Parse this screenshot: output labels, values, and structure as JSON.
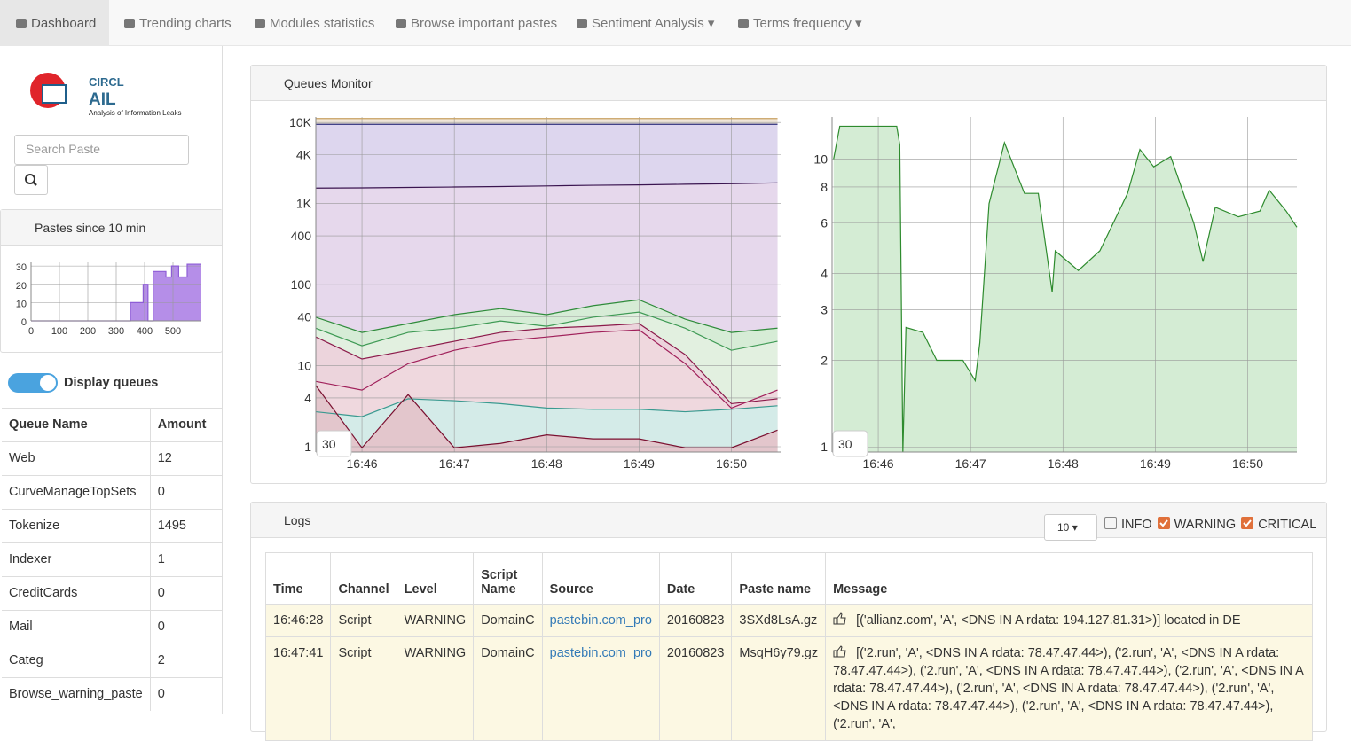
{
  "nav": {
    "items": [
      "Dashboard",
      "Trending charts",
      "Modules statistics",
      "Browse important pastes",
      "Sentiment Analysis",
      "Terms frequency"
    ]
  },
  "logo": {
    "org": "CIRCL",
    "name": "AIL",
    "tagline": "Analysis of Information Leaks"
  },
  "search": {
    "placeholder": "Search Paste"
  },
  "pastes_panel": {
    "title": "Pastes since 10 min",
    "chart": {
      "type": "area",
      "step": true,
      "color": "#8e5dd6",
      "fill": "#b58ee8",
      "x": [
        0,
        350,
        395,
        412,
        430,
        475,
        495,
        520,
        550,
        600
      ],
      "values": [
        0,
        10,
        20,
        0,
        27,
        24,
        30,
        24,
        31,
        31
      ],
      "xlim": [
        0,
        600
      ],
      "xticks": [
        0,
        100,
        200,
        300,
        400,
        500
      ],
      "ylim": [
        0,
        32
      ],
      "yticks": [
        0,
        10,
        20,
        30
      ]
    }
  },
  "display_queues": "Display queues",
  "queues_table": {
    "headers": [
      "Queue Name",
      "Amount"
    ],
    "rows": [
      [
        "Web",
        12
      ],
      [
        "CurveManageTopSets",
        0
      ],
      [
        "Tokenize",
        1495
      ],
      [
        "Indexer",
        1
      ],
      [
        "CreditCards",
        0
      ],
      [
        "Mail",
        0
      ],
      [
        "Categ",
        2
      ],
      [
        "Browse_warning_paste",
        0
      ]
    ]
  },
  "queues_monitor": {
    "title": "Queues Monitor",
    "charts": [
      {
        "type": "area",
        "log": true,
        "window": 30,
        "xlim": [
          "16:45:30",
          "16:50:32"
        ],
        "xticks": [
          "16:46",
          "16:47",
          "16:48",
          "16:49",
          "16:50"
        ],
        "ylim": [
          0.86,
          11700
        ],
        "yticks": [
          1,
          4,
          10,
          40,
          100,
          400,
          {
            "value": 1000,
            "label": "1K"
          },
          {
            "value": 4000,
            "label": "4K"
          },
          {
            "value": 10000,
            "label": "10K"
          }
        ],
        "x": [
          "16:45:30",
          "16:46:00",
          "16:46:30",
          "16:47:00",
          "16:47:30",
          "16:48:00",
          "16:48:30",
          "16:49:00",
          "16:49:30",
          "16:50:00",
          "16:50:30"
        ],
        "series": [
          {
            "color": "#c8a060",
            "fill": "#f0e6d8",
            "values": [
              11200,
              11200,
              11200,
              11200,
              11200,
              11200,
              11200,
              11200,
              11200,
              11200,
              11200
            ]
          },
          {
            "color": "#2c2c7a",
            "fill": "#ddd6ee",
            "values": [
              9500,
              9500,
              9500,
              9500,
              9500,
              9500,
              9500,
              9500,
              9500,
              9500,
              9500
            ]
          },
          {
            "color": "#3a1550",
            "fill": "#e6d8ec",
            "values": [
              1550,
              1560,
              1580,
              1600,
              1620,
              1650,
              1680,
              1700,
              1730,
              1760,
              1800
            ]
          },
          {
            "color": "#2e8b3a",
            "fill": "#d6ecd6",
            "values": [
              39.6,
              25.7,
              33,
              42.6,
              50.6,
              42.6,
              55,
              65,
              37.5,
              25.7,
              29
            ]
          },
          {
            "color": "#3f9a55",
            "fill": "#e2f0e0",
            "values": [
              29,
              17.6,
              25.7,
              29,
              35.6,
              30.6,
              39.6,
              45.8,
              29,
              15.5,
              20
            ]
          },
          {
            "color": "#8b1a4a",
            "fill": "#ecd4dc",
            "values": [
              22.6,
              12.1,
              15.5,
              20,
              25.7,
              29,
              30.6,
              33,
              13.7,
              3.4,
              3.9
            ]
          },
          {
            "color": "#a0205a",
            "fill": "#efd8de",
            "values": [
              6.4,
              5,
              10.6,
              15.5,
              20,
              22.6,
              25.7,
              27.7,
              10.6,
              3,
              5
            ]
          },
          {
            "color": "#3a9a90",
            "fill": "#d4ebe8",
            "values": [
              2.7,
              2.35,
              3.9,
              3.7,
              3.4,
              3,
              2.9,
              2.9,
              2.7,
              2.9,
              3.2
            ]
          },
          {
            "color": "#7a1030",
            "fill": "#e3c6cc",
            "values": [
              5.7,
              0.97,
              4.4,
              0.97,
              1.1,
              1.4,
              1.25,
              1.25,
              0.97,
              0.97,
              1.6
            ]
          }
        ]
      },
      {
        "type": "area",
        "log": true,
        "window": 30,
        "xlim": [
          "16:45:30",
          "16:50:32"
        ],
        "xticks": [
          "16:46",
          "16:47",
          "16:48",
          "16:49",
          "16:50"
        ],
        "ylim": [
          0.96,
          14
        ],
        "yticks": [
          1,
          2,
          3,
          4,
          6,
          8,
          10
        ],
        "x": [
          "16:45:31",
          "16:45:35",
          "16:46:12",
          "16:46:14",
          "16:46:16",
          "16:46:18",
          "16:46:29",
          "16:46:38",
          "16:46:55",
          "16:47:03",
          "16:47:06",
          "16:47:12",
          "16:47:22",
          "16:47:35",
          "16:47:44",
          "16:47:53",
          "16:47:55",
          "16:48:10",
          "16:48:24",
          "16:48:42",
          "16:48:50",
          "16:48:59",
          "16:49:10",
          "16:49:25",
          "16:49:31",
          "16:49:39",
          "16:49:54",
          "16:50:08",
          "16:50:14",
          "16:50:25",
          "16:50:32"
        ],
        "series": [
          {
            "color": "#2e8b2e",
            "fill": "#d4ecd4",
            "values": [
              10,
              13,
              13,
              11.2,
              0.96,
              2.6,
              2.5,
              2,
              2,
              1.7,
              2.3,
              7,
              11.4,
              7.6,
              7.6,
              3.45,
              4.8,
              4.1,
              4.8,
              7.6,
              10.8,
              9.4,
              10.2,
              6,
              4.4,
              6.8,
              6.3,
              6.6,
              7.8,
              6.6,
              5.8
            ]
          }
        ]
      }
    ]
  },
  "logs": {
    "title": "Logs",
    "page_size": 10,
    "filters": [
      {
        "label": "INFO",
        "checked": false
      },
      {
        "label": "WARNING",
        "checked": true
      },
      {
        "label": "CRITICAL",
        "checked": true
      }
    ],
    "headers": [
      "Time",
      "Channel",
      "Level",
      "Script Name",
      "Source",
      "Date",
      "Paste name",
      "Message"
    ],
    "rows": [
      [
        "16:46:28",
        "Script",
        "WARNING",
        "DomainC",
        "pastebin.com_pro",
        "20160823",
        "3SXd8LsA.gz",
        "[('allianz.com', 'A', <DNS IN A rdata: 194.127.81.31>)] located in DE"
      ],
      [
        "16:47:41",
        "Script",
        "WARNING",
        "DomainC",
        "pastebin.com_pro",
        "20160823",
        "MsqH6y79.gz",
        "[('2.run', 'A', <DNS IN A rdata: 78.47.47.44>), ('2.run', 'A', <DNS IN A rdata: 78.47.47.44>), ('2.run', 'A', <DNS IN A rdata: 78.47.47.44>), ('2.run', 'A', <DNS IN A rdata: 78.47.47.44>), ('2.run', 'A', <DNS IN A rdata: 78.47.47.44>), ('2.run', 'A', <DNS IN A rdata: 78.47.47.44>), ('2.run', 'A', <DNS IN A rdata: 78.47.47.44>), ('2.run', 'A',"
      ]
    ]
  }
}
